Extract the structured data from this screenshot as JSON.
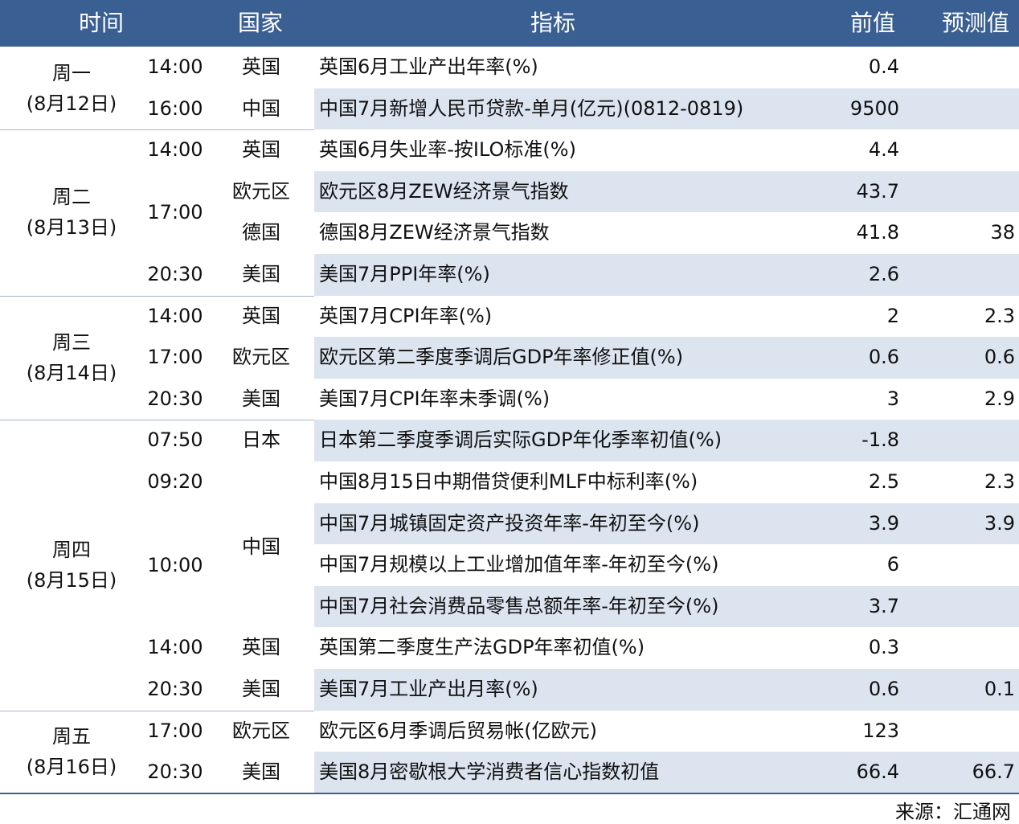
{
  "header": {
    "time": "时间",
    "country": "国家",
    "indicator": "指标",
    "previous": "前值",
    "forecast": "预测值"
  },
  "days": [
    {
      "name": "周一",
      "date": "(8月12日)"
    },
    {
      "name": "周二",
      "date": "(8月13日)"
    },
    {
      "name": "周三",
      "date": "(8月14日)"
    },
    {
      "name": "周四",
      "date": "(8月15日)"
    },
    {
      "name": "周五",
      "date": "(8月16日)"
    }
  ],
  "rows": [
    {
      "time": "14:00",
      "country": "英国",
      "indicator": "英国6月工业产出年率(%)",
      "previous": "0.4",
      "forecast": ""
    },
    {
      "time": "16:00",
      "country": "中国",
      "indicator": "中国7月新增人民币贷款-单月(亿元)(0812-0819)",
      "previous": "9500",
      "forecast": ""
    },
    {
      "time": "14:00",
      "country": "英国",
      "indicator": "英国6月失业率-按ILO标准(%)",
      "previous": "4.4",
      "forecast": ""
    },
    {
      "time": "17:00",
      "country": "欧元区",
      "indicator": "欧元区8月ZEW经济景气指数",
      "previous": "43.7",
      "forecast": ""
    },
    {
      "time": "",
      "country": "德国",
      "indicator": "德国8月ZEW经济景气指数",
      "previous": "41.8",
      "forecast": "38"
    },
    {
      "time": "20:30",
      "country": "美国",
      "indicator": "美国7月PPI年率(%)",
      "previous": "2.6",
      "forecast": ""
    },
    {
      "time": "14:00",
      "country": "英国",
      "indicator": "英国7月CPI年率(%)",
      "previous": "2",
      "forecast": "2.3"
    },
    {
      "time": "17:00",
      "country": "欧元区",
      "indicator": "欧元区第二季度季调后GDP年率修正值(%)",
      "previous": "0.6",
      "forecast": "0.6"
    },
    {
      "time": "20:30",
      "country": "美国",
      "indicator": "美国7月CPI年率未季调(%)",
      "previous": "3",
      "forecast": "2.9"
    },
    {
      "time": "07:50",
      "country": "日本",
      "indicator": "日本第二季度季调后实际GDP年化季率初值(%)",
      "previous": "-1.8",
      "forecast": ""
    },
    {
      "time": "09:20",
      "country": "中国",
      "indicator": "中国8月15日中期借贷便利MLF中标利率(%)",
      "previous": "2.5",
      "forecast": "2.3"
    },
    {
      "time": "10:00",
      "country": "",
      "indicator": "中国7月城镇固定资产投资年率-年初至今(%)",
      "previous": "3.9",
      "forecast": "3.9"
    },
    {
      "time": "",
      "country": "",
      "indicator": "中国7月规模以上工业增加值年率-年初至今(%)",
      "previous": "6",
      "forecast": ""
    },
    {
      "time": "",
      "country": "",
      "indicator": "中国7月社会消费品零售总额年率-年初至今(%)",
      "previous": "3.7",
      "forecast": ""
    },
    {
      "time": "14:00",
      "country": "英国",
      "indicator": "英国第二季度生产法GDP年率初值(%)",
      "previous": "0.3",
      "forecast": ""
    },
    {
      "time": "20:30",
      "country": "美国",
      "indicator": "美国7月工业产出月率(%)",
      "previous": "0.6",
      "forecast": "0.1"
    },
    {
      "time": "17:00",
      "country": "欧元区",
      "indicator": "欧元区6月季调后贸易帐(亿欧元)",
      "previous": "123",
      "forecast": ""
    },
    {
      "time": "20:30",
      "country": "美国",
      "indicator": "美国8月密歇根大学消费者信心指数初值",
      "previous": "66.4",
      "forecast": "66.7"
    }
  ],
  "source": "来源：汇通网",
  "colors": {
    "header_bg": "#3a5f92",
    "row_shade": "#dbe4ef"
  }
}
